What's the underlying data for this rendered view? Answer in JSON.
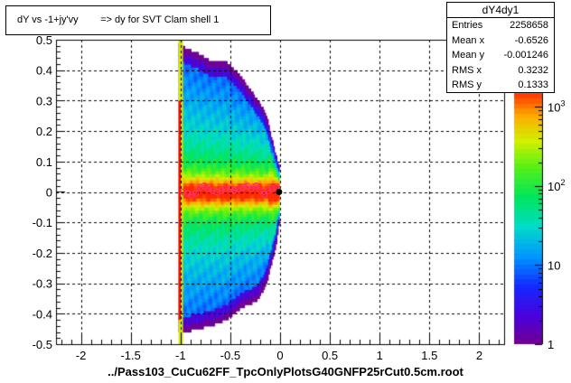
{
  "window": {
    "title": "dY vs -1+jy'vy        => dy for SVT Clam shell 1",
    "footer": "../Pass103_CuCu62FF_TpcOnlyPlotsG40GNFP25rCut0.5cm.root"
  },
  "stats": {
    "name": "dY4dy1",
    "rows": [
      {
        "label": "Entries",
        "value": "2258658"
      },
      {
        "label": "Mean x",
        "value": "-0.6526"
      },
      {
        "label": "Mean y",
        "value": "-0.001246"
      },
      {
        "label": "RMS x",
        "value": "0.3232"
      },
      {
        "label": "RMS y",
        "value": "0.1333"
      }
    ]
  },
  "chart_data": {
    "type": "heatmap",
    "title": "dY vs -1+jy'vy        => dy for SVT Clam shell 1",
    "xlim": [
      -2.25,
      2.25
    ],
    "ylim": [
      -0.5,
      0.5
    ],
    "x_ticks": [
      -2,
      -1.5,
      -1,
      -0.5,
      0,
      0.5,
      1,
      1.5,
      2
    ],
    "x_tick_labels": [
      "-2",
      "-1.5",
      "-1",
      "-0.5",
      "0",
      "0.5",
      "1",
      "1.5",
      "2"
    ],
    "y_ticks": [
      -0.5,
      -0.4,
      -0.3,
      -0.2,
      -0.1,
      0,
      0.1,
      0.2,
      0.3,
      0.4,
      0.5
    ],
    "y_tick_labels": [
      "-0.5",
      "-0.4",
      "-0.3",
      "-0.2",
      "-0.1",
      "0",
      "0.1",
      "0.2",
      "0.3",
      "0.4",
      "0.5"
    ],
    "grid": true,
    "color_scale": "log",
    "zlim": [
      1,
      1500
    ],
    "z_ticks": [
      1,
      10,
      100,
      1000
    ],
    "z_tick_labels": [
      "1",
      "10",
      "10^2",
      "10^3"
    ],
    "band_edges": [
      {
        "x": -1.02,
        "ymin": -0.46,
        "ymax": 0.49
      },
      {
        "x": -0.95,
        "ymin": -0.46,
        "ymax": 0.47
      },
      {
        "x": -0.85,
        "ymin": -0.45,
        "ymax": 0.46
      },
      {
        "x": -0.7,
        "ymin": -0.44,
        "ymax": 0.43
      },
      {
        "x": -0.55,
        "ymin": -0.42,
        "ymax": 0.43
      },
      {
        "x": -0.4,
        "ymin": -0.38,
        "ymax": 0.38
      },
      {
        "x": -0.25,
        "ymin": -0.36,
        "ymax": 0.31
      },
      {
        "x": -0.15,
        "ymin": -0.31,
        "ymax": 0.26
      },
      {
        "x": -0.05,
        "ymin": -0.18,
        "ymax": 0.12
      },
      {
        "x": -0.01,
        "ymin": -0.08,
        "ymax": 0.08
      }
    ],
    "profile_points": [
      {
        "x": -0.97,
        "y": 0.0
      },
      {
        "x": -0.93,
        "y": -0.005
      },
      {
        "x": -0.89,
        "y": -0.01
      },
      {
        "x": -0.85,
        "y": -0.005
      },
      {
        "x": -0.8,
        "y": 0.015
      },
      {
        "x": -0.76,
        "y": 0.02
      },
      {
        "x": -0.72,
        "y": 0.01
      },
      {
        "x": -0.68,
        "y": 0.005
      },
      {
        "x": -0.63,
        "y": 0.0
      },
      {
        "x": -0.59,
        "y": 0.005
      },
      {
        "x": -0.55,
        "y": 0.01
      },
      {
        "x": -0.5,
        "y": 0.01
      },
      {
        "x": -0.46,
        "y": 0.005
      },
      {
        "x": -0.42,
        "y": 0.01
      },
      {
        "x": -0.37,
        "y": 0.015
      },
      {
        "x": -0.33,
        "y": 0.02
      },
      {
        "x": -0.29,
        "y": 0.01
      },
      {
        "x": -0.24,
        "y": 0.02
      },
      {
        "x": -0.2,
        "y": 0.005
      },
      {
        "x": -0.16,
        "y": -0.01
      },
      {
        "x": -0.12,
        "y": 0.005
      },
      {
        "x": -0.08,
        "y": 0.01
      },
      {
        "x": -0.04,
        "y": 0.015
      }
    ],
    "black_marker": {
      "x": -0.01,
      "y": 0.0
    }
  },
  "colors": {
    "frame": "#000000",
    "grid": "#000000",
    "profile": "#ff3366",
    "edge_line_left": "#ff0000",
    "edge_line_right": "#d4e600"
  }
}
